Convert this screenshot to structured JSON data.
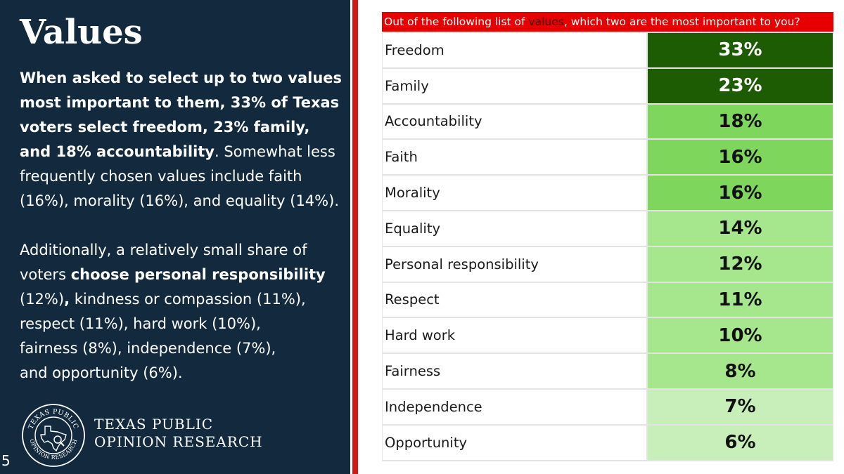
{
  "slide": {
    "title": "Values",
    "page_number": "5"
  },
  "summary": {
    "p1_bold": "When asked to select up to two values most important to them, 33% of Texas voters select freedom, 23% family, and 18% accountability",
    "p1_rest": ". Somewhat less frequently chosen values include faith (16%), morality (16%), and equality (14%).",
    "p2_a": "Additionally, a relatively small share of voters ",
    "p2_bold1": "choose personal responsibility",
    "p2_b": " (12%)",
    "p2_bold2": ",",
    "p2_c": " kindness or compassion (11%), respect (11%), hard work (10%),",
    "p2_d": " fairness (8%), independence (7%),",
    "p2_e": "and opportunity (6%)."
  },
  "brand": {
    "line1": "TEXAS PUBLIC",
    "line2": "OPINION RESEARCH",
    "seal_text_top": "TEXAS PUBLIC",
    "seal_text_bottom": "OPINION RESEARCH"
  },
  "colors": {
    "panel_bg": "#132a3e",
    "question_bg": "#e60000",
    "divider_red": "#d11616",
    "shade_dark": "#1e5c03",
    "shade_medium": "#7fd65c",
    "shade_light": "#a6e68c",
    "shade_pale": "#c8efb9"
  },
  "chart_data": {
    "type": "table",
    "title_before": "Out of the following list of ",
    "title_highlight": "values",
    "title_after": ", which two are the most important to you?",
    "rows": [
      {
        "label": "Freedom",
        "value": 33,
        "display": "33%",
        "shade": "dark"
      },
      {
        "label": "Family",
        "value": 23,
        "display": "23%",
        "shade": "dark"
      },
      {
        "label": "Accountability",
        "value": 18,
        "display": "18%",
        "shade": "medium"
      },
      {
        "label": "Faith",
        "value": 16,
        "display": "16%",
        "shade": "medium"
      },
      {
        "label": "Morality",
        "value": 16,
        "display": "16%",
        "shade": "medium"
      },
      {
        "label": "Equality",
        "value": 14,
        "display": "14%",
        "shade": "light"
      },
      {
        "label": "Personal responsibility",
        "value": 12,
        "display": "12%",
        "shade": "light"
      },
      {
        "label": "Respect",
        "value": 11,
        "display": "11%",
        "shade": "light"
      },
      {
        "label": "Hard work",
        "value": 10,
        "display": "10%",
        "shade": "light"
      },
      {
        "label": "Fairness",
        "value": 8,
        "display": "8%",
        "shade": "light"
      },
      {
        "label": "Independence",
        "value": 7,
        "display": "7%",
        "shade": "pale"
      },
      {
        "label": "Opportunity",
        "value": 6,
        "display": "6%",
        "shade": "pale"
      }
    ]
  }
}
